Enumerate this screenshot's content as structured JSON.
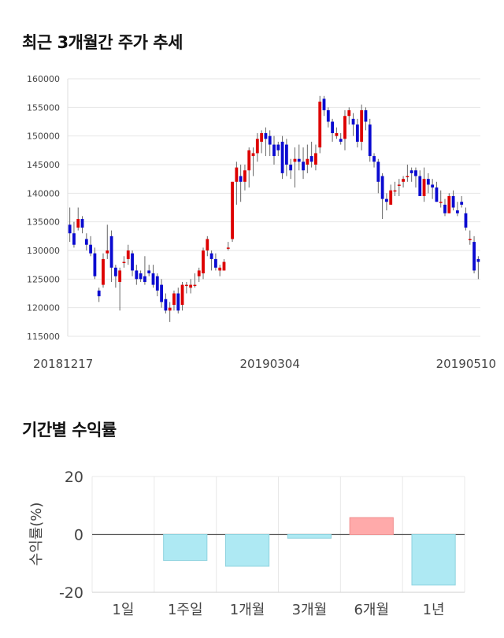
{
  "sections": {
    "price_trend_title": "최근 3개월간 주가 추세",
    "returns_title": "기간별 수익률"
  },
  "colors": {
    "up": "#dd0000",
    "down": "#0a0ad0",
    "wick": "#666666",
    "positive_bar": "#ffaaaa",
    "negative_bar": "#aee9f3"
  },
  "chart_data": [
    {
      "type": "candlestick",
      "title": "",
      "ylim": [
        115000,
        160000
      ],
      "y_ticks": [
        160000,
        155000,
        150000,
        145000,
        140000,
        135000,
        130000,
        125000,
        120000,
        115000
      ],
      "x_tick_labels": [
        {
          "label": "20181217",
          "index": 0
        },
        {
          "label": "20190304",
          "index": 48
        },
        {
          "label": "20190510",
          "index": 94
        }
      ],
      "grid": true,
      "candles": [
        [
          134500,
          133000,
          137500,
          131500
        ],
        [
          133000,
          131000,
          135000,
          130500
        ],
        [
          134000,
          135500,
          137500,
          133500
        ],
        [
          135500,
          134000,
          136000,
          133000
        ],
        [
          132000,
          131000,
          133000,
          130000
        ],
        [
          131000,
          129500,
          132500,
          129000
        ],
        [
          129500,
          125500,
          130500,
          125000
        ],
        [
          123000,
          122000,
          123500,
          121000
        ],
        [
          124000,
          128500,
          129500,
          123500
        ],
        [
          129500,
          130000,
          134500,
          128500
        ],
        [
          132500,
          127000,
          133500,
          124500
        ],
        [
          127000,
          125500,
          127500,
          123500
        ],
        [
          124500,
          126500,
          127000,
          119500
        ],
        [
          128000,
          128000,
          129000,
          127000
        ],
        [
          128500,
          130000,
          131000,
          127500
        ],
        [
          129500,
          126500,
          130000,
          125500
        ],
        [
          126500,
          125000,
          127500,
          124000
        ],
        [
          126000,
          125000,
          126500,
          124500
        ],
        [
          125500,
          124500,
          129000,
          124000
        ],
        [
          126500,
          126000,
          127500,
          125500
        ],
        [
          126000,
          124000,
          127500,
          123500
        ],
        [
          125500,
          123000,
          126000,
          122000
        ],
        [
          124000,
          121000,
          125000,
          120000
        ],
        [
          121500,
          119500,
          122500,
          119000
        ],
        [
          119500,
          120000,
          121000,
          117500
        ],
        [
          120500,
          122500,
          123000,
          119500
        ],
        [
          122500,
          119500,
          123500,
          119000
        ],
        [
          120500,
          124000,
          124500,
          119500
        ],
        [
          124000,
          124000,
          124500,
          122500
        ],
        [
          123500,
          124000,
          125000,
          122500
        ],
        [
          124000,
          124000,
          126000,
          123500
        ],
        [
          125500,
          126500,
          127000,
          124500
        ],
        [
          126000,
          130000,
          130500,
          125000
        ],
        [
          130000,
          132000,
          132500,
          129000
        ],
        [
          129500,
          128500,
          130000,
          126500
        ],
        [
          128500,
          127000,
          129500,
          126500
        ],
        [
          126500,
          127000,
          127500,
          125500
        ],
        [
          126500,
          128000,
          128500,
          126500
        ],
        [
          130500,
          130500,
          131500,
          130000
        ],
        [
          132000,
          142000,
          142000,
          131500
        ],
        [
          142000,
          144500,
          145500,
          138000
        ],
        [
          143000,
          142000,
          145000,
          138500
        ],
        [
          142000,
          144000,
          145000,
          140500
        ],
        [
          144000,
          147500,
          148000,
          141000
        ],
        [
          146500,
          147000,
          148000,
          143000
        ],
        [
          147000,
          149500,
          150500,
          145500
        ],
        [
          149000,
          150500,
          151000,
          147000
        ],
        [
          150500,
          149500,
          151500,
          146500
        ],
        [
          150000,
          148500,
          151000,
          146500
        ],
        [
          148500,
          146500,
          150000,
          145000
        ],
        [
          148500,
          147500,
          149000,
          146500
        ],
        [
          149000,
          143500,
          150000,
          142500
        ],
        [
          148500,
          145000,
          149500,
          143000
        ],
        [
          145000,
          144000,
          146000,
          142500
        ],
        [
          145500,
          146000,
          148000,
          141000
        ],
        [
          146000,
          145500,
          148500,
          144000
        ],
        [
          145500,
          144000,
          148000,
          142500
        ],
        [
          145000,
          146000,
          148500,
          143500
        ],
        [
          146500,
          145500,
          149000,
          144500
        ],
        [
          145000,
          147000,
          148500,
          144000
        ],
        [
          148000,
          156000,
          157000,
          147000
        ],
        [
          156500,
          154500,
          157000,
          153500
        ],
        [
          154500,
          152500,
          155000,
          151500
        ],
        [
          152500,
          150500,
          153000,
          149000
        ],
        [
          150000,
          150500,
          151500,
          149500
        ],
        [
          149500,
          149000,
          150500,
          148500
        ],
        [
          149500,
          153500,
          154500,
          147500
        ],
        [
          153500,
          154500,
          155000,
          152000
        ],
        [
          153000,
          152000,
          154000,
          150000
        ],
        [
          152000,
          149000,
          153000,
          148000
        ],
        [
          149000,
          154500,
          155500,
          147500
        ],
        [
          154500,
          152500,
          155000,
          151000
        ],
        [
          152000,
          146500,
          153000,
          145500
        ],
        [
          146500,
          145500,
          147000,
          144500
        ],
        [
          145500,
          142000,
          146000,
          140000
        ],
        [
          143000,
          139000,
          143500,
          135500
        ],
        [
          139000,
          138500,
          140000,
          137000
        ],
        [
          138000,
          140500,
          141500,
          138000
        ],
        [
          140500,
          140500,
          142000,
          139500
        ],
        [
          141500,
          141500,
          142500,
          139500
        ],
        [
          142000,
          142500,
          143000,
          141000
        ],
        [
          143000,
          143000,
          145000,
          142000
        ],
        [
          144000,
          143500,
          144500,
          142000
        ],
        [
          144000,
          143000,
          144500,
          141000
        ],
        [
          143000,
          139500,
          144000,
          139500
        ],
        [
          139500,
          142500,
          144500,
          138500
        ],
        [
          142500,
          141500,
          143500,
          140000
        ],
        [
          141500,
          141000,
          142500,
          139000
        ],
        [
          141000,
          138500,
          142000,
          138500
        ],
        [
          138500,
          138500,
          140500,
          137500
        ],
        [
          138000,
          136500,
          139000,
          136000
        ],
        [
          136500,
          139500,
          140000,
          136500
        ],
        [
          139500,
          137500,
          140500,
          137000
        ],
        [
          137000,
          136500,
          138500,
          136000
        ],
        [
          138500,
          138000,
          139500,
          137500
        ],
        [
          136500,
          134000,
          137500,
          133500
        ],
        [
          132000,
          132000,
          133500,
          131000
        ],
        [
          131500,
          126500,
          132500,
          126000
        ],
        [
          128500,
          128000,
          129000,
          125000
        ]
      ]
    },
    {
      "type": "bar",
      "title": "",
      "ylabel": "수익률(%)",
      "ylim": [
        -20,
        20
      ],
      "y_ticks": [
        20,
        0,
        -20
      ],
      "categories": [
        "1일",
        "1주일",
        "1개월",
        "3개월",
        "6개월",
        "1년"
      ],
      "values": [
        0,
        -9,
        -11,
        -1.3,
        5.8,
        -17.5
      ],
      "grid": true
    }
  ]
}
